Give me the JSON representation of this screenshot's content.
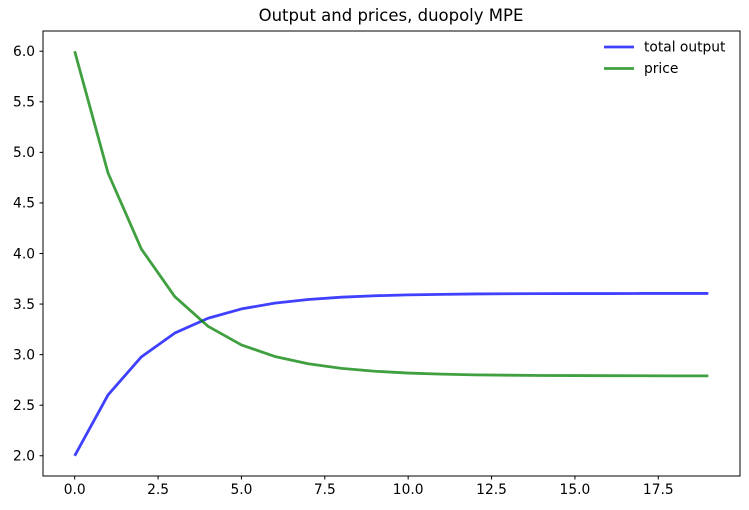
{
  "figure": {
    "background_color": "#ffffff",
    "spine_color": "#000000"
  },
  "chart_data": {
    "type": "line",
    "title": "Output and prices, duopoly MPE",
    "xlabel": "",
    "ylabel": "",
    "x": [
      0,
      1,
      2,
      3,
      4,
      5,
      6,
      7,
      8,
      9,
      10,
      11,
      12,
      13,
      14,
      15,
      16,
      17,
      18,
      19
    ],
    "series": [
      {
        "name": "total output",
        "color": "#0000ff",
        "alpha": 0.75,
        "values": [
          2.0,
          2.602,
          2.978,
          3.213,
          3.36,
          3.452,
          3.509,
          3.545,
          3.568,
          3.582,
          3.591,
          3.596,
          3.6,
          3.602,
          3.603,
          3.604,
          3.604,
          3.605,
          3.605,
          3.605
        ]
      },
      {
        "name": "price",
        "color": "#008000",
        "alpha": 0.75,
        "values": [
          6.0,
          4.796,
          4.044,
          3.574,
          3.28,
          3.096,
          2.982,
          2.91,
          2.864,
          2.836,
          2.818,
          2.807,
          2.8,
          2.797,
          2.794,
          2.793,
          2.792,
          2.791,
          2.79,
          2.79
        ]
      }
    ],
    "xlim": [
      -0.95,
      19.95
    ],
    "ylim": [
      1.8,
      6.2
    ],
    "xticks": [
      0,
      2.5,
      5,
      7.5,
      10,
      12.5,
      15,
      17.5
    ],
    "xtick_labels": [
      "0.0",
      "2.5",
      "5.0",
      "7.5",
      "10.0",
      "12.5",
      "15.0",
      "17.5"
    ],
    "yticks": [
      2.0,
      2.5,
      3.0,
      3.5,
      4.0,
      4.5,
      5.0,
      5.5,
      6.0
    ],
    "ytick_labels": [
      "2.0",
      "2.5",
      "3.0",
      "3.5",
      "4.0",
      "4.5",
      "5.0",
      "5.5",
      "6.0"
    ],
    "grid": false,
    "line_width": 2.8,
    "legend": {
      "position": "upper right",
      "frame": false,
      "entries": [
        "total output",
        "price"
      ]
    }
  }
}
